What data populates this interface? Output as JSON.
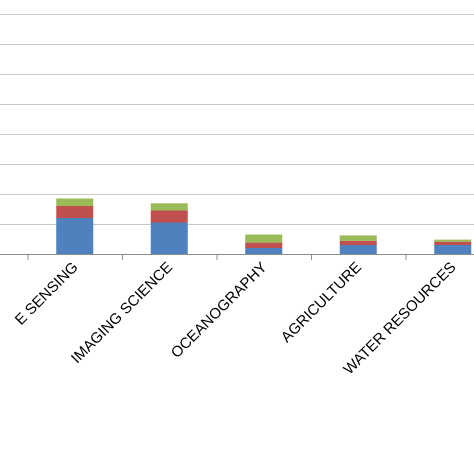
{
  "chart_data": {
    "type": "bar",
    "stacked": true,
    "categories": [
      "REMOTE SENSING",
      "IMAGING SCIENCE",
      "OCEANOGRAPHY",
      "AGRICULTURE",
      "WATER RESOURCES"
    ],
    "visible_category_labels": [
      "E SENSING",
      "IMAGING SCIENCE",
      "OCEANOGRAPHY",
      "AGRICULTURE",
      "WATER RESOURCES"
    ],
    "series": [
      {
        "values": [
          12.0,
          10.5,
          2.0,
          3.0,
          3.0
        ]
      },
      {
        "values": [
          4.0,
          4.0,
          1.8,
          1.4,
          1.1
        ]
      },
      {
        "values": [
          2.5,
          2.4,
          2.7,
          1.8,
          0.7
        ]
      }
    ],
    "ylim": [
      0,
      90
    ],
    "grid": true,
    "colors": [
      "#4e81bd",
      "#c0504d",
      "#9bbb59"
    ]
  }
}
